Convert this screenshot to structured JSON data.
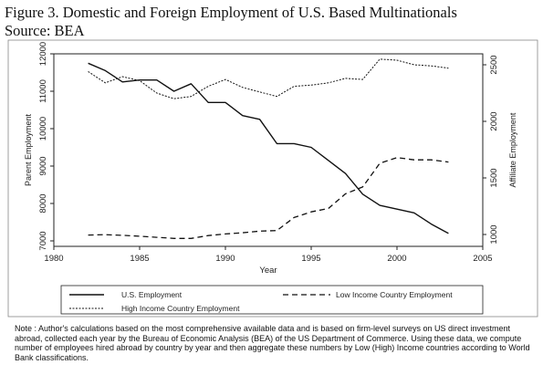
{
  "figure": {
    "title": "Figure 3. Domestic and Foreign Employment of U.S. Based Multinationals",
    "source": "Source: BEA"
  },
  "chart_data": {
    "type": "line",
    "title": "",
    "xlabel": "Year",
    "ylabel_left": "Parent Employment",
    "ylabel_right": "Affiliate Employment",
    "xlim": [
      1980,
      2005
    ],
    "ylim_left": [
      7000,
      12000
    ],
    "ylim_right": [
      1000,
      2500
    ],
    "x_ticks": [
      1980,
      1985,
      1990,
      1995,
      2000,
      2005
    ],
    "y_left_ticks": [
      7000,
      8000,
      9000,
      10000,
      11000,
      12000
    ],
    "y_right_ticks": [
      1000,
      1500,
      2000,
      2500
    ],
    "grid": false,
    "legend_position": "bottom",
    "series": [
      {
        "name": "U.S. Employment",
        "axis": "left",
        "style": "solid",
        "x": [
          1982,
          1983,
          1984,
          1985,
          1986,
          1987,
          1988,
          1989,
          1990,
          1991,
          1992,
          1993,
          1994,
          1995,
          1996,
          1997,
          1998,
          1999,
          2000,
          2001,
          2002,
          2003
        ],
        "values": [
          11750,
          11550,
          11250,
          11300,
          11300,
          11000,
          11200,
          10700,
          10700,
          10350,
          10250,
          9600,
          9600,
          9500,
          9150,
          8800,
          8250,
          7950,
          7850,
          7750,
          7450,
          7200
        ]
      },
      {
        "name": "Low Income Country Employment",
        "axis": "right",
        "style": "dashed",
        "x": [
          1982,
          1983,
          1984,
          1985,
          1986,
          1987,
          1988,
          1989,
          1990,
          1991,
          1992,
          1993,
          1994,
          1995,
          1996,
          1997,
          1998,
          1999,
          2000,
          2001,
          2002,
          2003
        ],
        "values": [
          995,
          998,
          993,
          985,
          975,
          965,
          965,
          990,
          1005,
          1015,
          1030,
          1035,
          1150,
          1200,
          1230,
          1360,
          1420,
          1630,
          1680,
          1660,
          1660,
          1640
        ]
      },
      {
        "name": "High Income Country Employment",
        "axis": "right",
        "style": "dotted",
        "x": [
          1982,
          1983,
          1984,
          1985,
          1986,
          1987,
          1988,
          1989,
          1990,
          1991,
          1992,
          1993,
          1994,
          1995,
          1996,
          1997,
          1998,
          1999,
          2000,
          2001,
          2002,
          2003
        ],
        "values": [
          2440,
          2340,
          2395,
          2360,
          2250,
          2200,
          2220,
          2310,
          2370,
          2300,
          2260,
          2220,
          2310,
          2320,
          2340,
          2380,
          2370,
          2550,
          2540,
          2500,
          2490,
          2470
        ]
      }
    ]
  },
  "note": "Note : Author's calculations based on the most comprehensive available data and is based on firm-level surveys on US direct investment abroad, collected each year by the Bureau of Economic Analysis (BEA) of the US Department of Commerce. Using these data, we compute number of employees hired abroad by country by year and then aggregate these numbers by Low (High) Income countries according to World Bank classifications."
}
